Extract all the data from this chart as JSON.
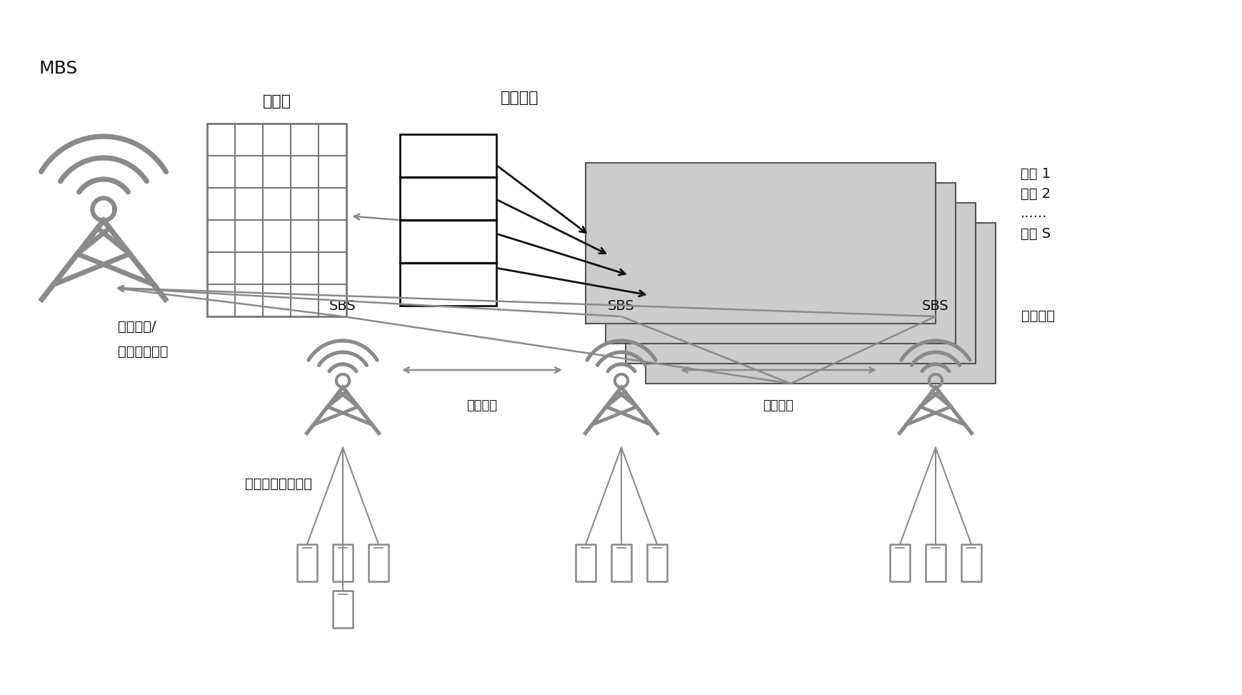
{
  "bg_color": "#ffffff",
  "tower_color": "#8a8a8a",
  "line_color": "#8a8a8a",
  "black_arrow_color": "#111111",
  "text_color": "#111111",
  "slice_fill": "#cccccc",
  "slice_edge": "#555555",
  "grid_line_color": "#777777",
  "rl_box_fill": "#ffffff",
  "rl_box_edge": "#111111",
  "mbs_label": "MBS",
  "resource_label": "资源块",
  "rl_label_top": "强化学习",
  "rl_label_right": "强化学习",
  "slice_labels": [
    "切片 1",
    "切片 2",
    "......",
    "切片 S"
  ],
  "sbs_labels": [
    "SBS",
    "SBS",
    "SBS"
  ],
  "inter_tier_label1": "层间干扰",
  "inter_tier_label2": "层间干扰",
  "cross_layer_line1": "跨层干扰/",
  "cross_layer_line2": "跨层干扰价格",
  "stackelberg_label": "斯坦克尔伯格博弈",
  "font_size": 13,
  "font_size_large": 15
}
